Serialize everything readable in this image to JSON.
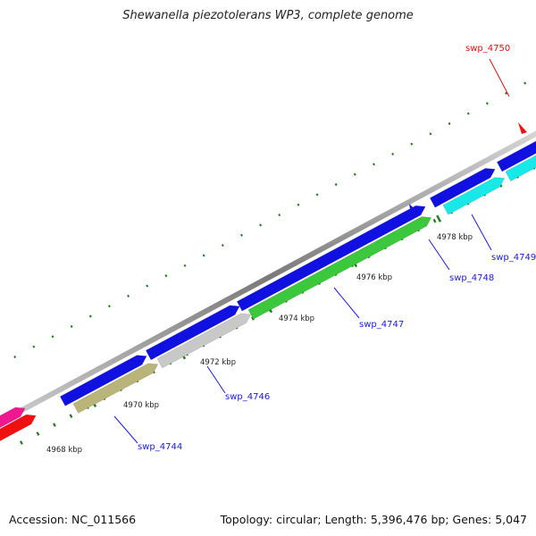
{
  "title": "Shewanella piezotolerans WP3, complete genome",
  "footer": {
    "accession": "Accession: NC_011566",
    "summary": "Topology: circular; Length: 5,396,476 bp; Genes: 5,047"
  },
  "colors": {
    "backbone": "#9a9a9a",
    "tick": "#1f7a1f",
    "blue_gene": "#1010e0",
    "label_blue": "#1a1ae0",
    "label_red": "#e01010"
  },
  "ticks": [
    {
      "label": "4968 kbp"
    },
    {
      "label": "4970 kbp"
    },
    {
      "label": "4972 kbp"
    },
    {
      "label": "4974 kbp"
    },
    {
      "label": "4976 kbp"
    },
    {
      "label": "4978 kbp"
    }
  ],
  "genes": [
    {
      "name": "swp_4744",
      "label_color": "blue",
      "fill": "#b8b47a"
    },
    {
      "name": "swp_4746",
      "label_color": "blue",
      "fill": "#c8c8c8"
    },
    {
      "name": "swp_4747",
      "label_color": "blue",
      "fill": "#3cc83c"
    },
    {
      "name": "swp_4748",
      "label_color": "blue",
      "fill": "#1010e0"
    },
    {
      "name": "swp_4749",
      "label_color": "blue",
      "fill": "#18e8e8"
    },
    {
      "name": "swp_4750",
      "label_color": "red",
      "fill": "#f01010"
    }
  ]
}
